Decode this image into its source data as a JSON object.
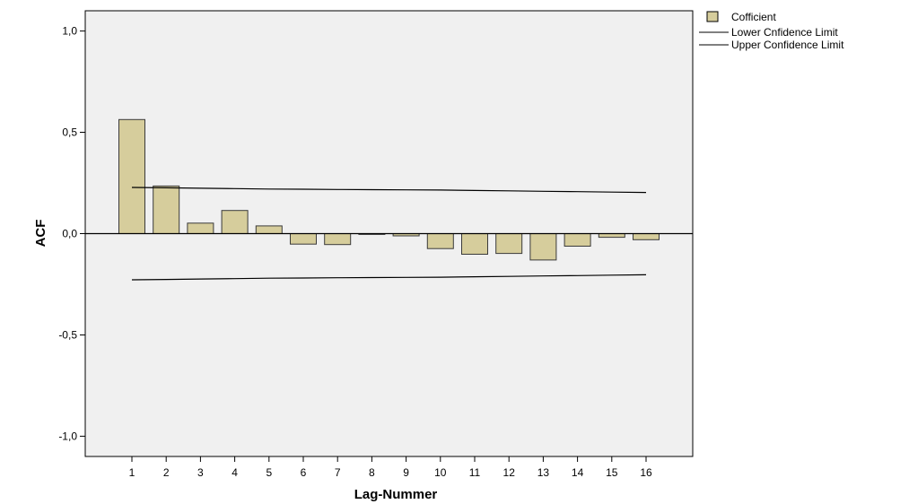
{
  "chart_data": {
    "type": "bar",
    "xlabel": "Lag-Nummer",
    "ylabel": "ACF",
    "ylim": [
      -1.1,
      1.1
    ],
    "yticks": [
      1.0,
      0.5,
      0.0,
      -0.5,
      -1.0
    ],
    "ytick_labels": [
      "1,0",
      "0,5",
      "0,0",
      "-0,5",
      "-1,0"
    ],
    "categories": [
      "1",
      "2",
      "3",
      "4",
      "5",
      "6",
      "7",
      "8",
      "9",
      "10",
      "11",
      "12",
      "13",
      "14",
      "15",
      "16"
    ],
    "series": [
      {
        "name": "Cofficient",
        "values": [
          0.563,
          0.235,
          0.052,
          0.114,
          0.038,
          -0.052,
          -0.054,
          -0.004,
          -0.011,
          -0.074,
          -0.102,
          -0.098,
          -0.13,
          -0.062,
          -0.018,
          -0.03
        ]
      },
      {
        "name": "Lower Cnfidence Limit",
        "values": [
          -0.228,
          -0.226,
          -0.224,
          -0.222,
          -0.22,
          -0.219,
          -0.218,
          -0.217,
          -0.216,
          -0.215,
          -0.213,
          -0.211,
          -0.209,
          -0.207,
          -0.205,
          -0.203
        ]
      },
      {
        "name": "Upper Confidence Limit",
        "values": [
          0.228,
          0.226,
          0.224,
          0.222,
          0.22,
          0.219,
          0.218,
          0.217,
          0.216,
          0.215,
          0.213,
          0.211,
          0.209,
          0.207,
          0.205,
          0.203
        ]
      }
    ],
    "grid": false,
    "legend_position": "top-right",
    "colors": {
      "bar_fill": "#d6cd9c",
      "bar_stroke": "#3a3a3a",
      "plot_bg": "#f0f0f0",
      "line": "#000000"
    }
  }
}
